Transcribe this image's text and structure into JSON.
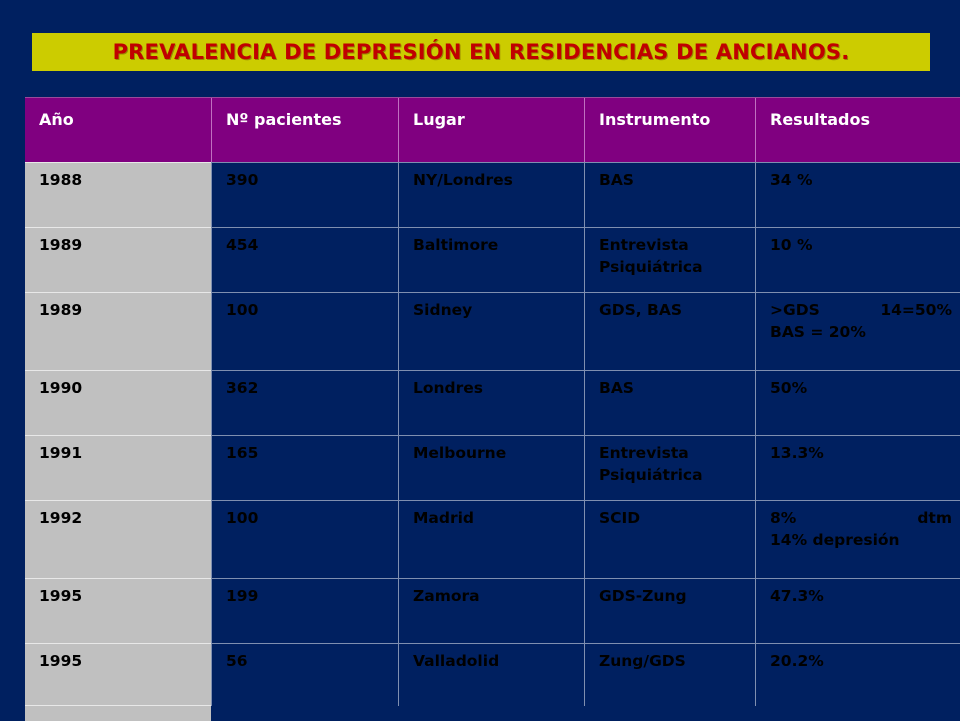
{
  "title": "PREVALENCIA DE DEPRESIÓN EN RESIDENCIAS DE ANCIANOS.",
  "headers": [
    "Año",
    "Nº pacientes",
    "Lugar",
    "Instrumento",
    "Resultados"
  ],
  "rows": [
    {
      "year": "1988",
      "patients": "390",
      "place": "NY/Londres",
      "instrument": "BAS",
      "result": [
        "34 %"
      ]
    },
    {
      "year": "1989",
      "patients": "454",
      "place": "Baltimore",
      "instrument": "Entrevista Psiquiátrica",
      "result": [
        "10 %"
      ]
    },
    {
      "year": "1989",
      "patients": "100",
      "place": "Sidney",
      "instrument": "GDS, BAS",
      "result": [
        ">GDS 14=50%",
        "BAS = 20%"
      ]
    },
    {
      "year": "1990",
      "patients": "362",
      "place": "Londres",
      "instrument": "BAS",
      "result": [
        "50%"
      ]
    },
    {
      "year": "1991",
      "patients": "165",
      "place": "Melbourne",
      "instrument": "Entrevista Psiquiátrica",
      "result": [
        "13.3%"
      ]
    },
    {
      "year": "1992",
      "patients": "100",
      "place": "Madrid",
      "instrument": "SCID",
      "result": [
        "8% dtm",
        "14% depresión"
      ]
    },
    {
      "year": "1995",
      "patients": "199",
      "place": "Zamora",
      "instrument": "GDS-Zung",
      "result": [
        "47.3%"
      ]
    },
    {
      "year": "1995",
      "patients": "56",
      "place": "Valladolid",
      "instrument": "Zung/GDS",
      "result": [
        "20.2%"
      ]
    }
  ],
  "colors": {
    "background": "#002060",
    "title_bar": "#CCCC00",
    "title_text": "#C00000",
    "header_row": "#800080",
    "first_column": "#C0C0C0"
  }
}
